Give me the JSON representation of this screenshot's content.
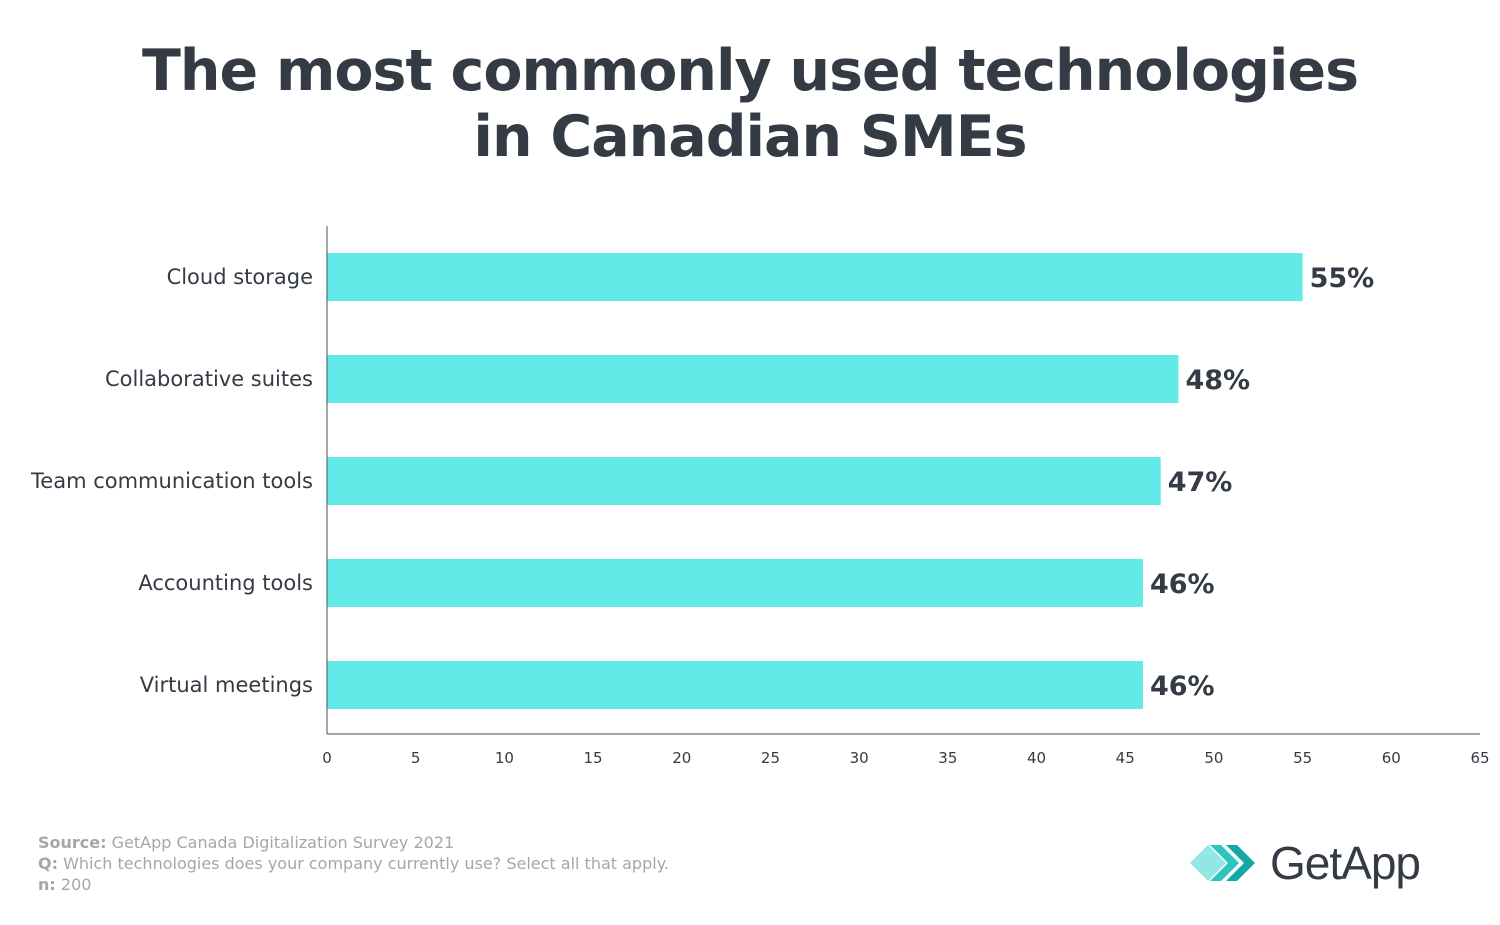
{
  "title": {
    "line1": "The most commonly used technologies",
    "line2": "in Canadian SMEs"
  },
  "chart_data": {
    "type": "bar",
    "orientation": "horizontal",
    "categories": [
      "Cloud storage",
      "Collaborative suites",
      "Team communication tools",
      "Accounting tools",
      "Virtual meetings"
    ],
    "values": [
      55,
      48,
      47,
      46,
      46
    ],
    "value_labels": [
      "55%",
      "48%",
      "47%",
      "46%",
      "46%"
    ],
    "xlim": [
      0,
      65
    ],
    "xticks": [
      0,
      5,
      10,
      15,
      20,
      25,
      30,
      35,
      40,
      45,
      50,
      55,
      60,
      65
    ],
    "grid": false,
    "bar_color": "#64e9e9"
  },
  "footer": {
    "source_key": "Source:",
    "source_value": " GetApp Canada Digitalization Survey 2021",
    "q_key": "Q:",
    "q_value": " Which technologies does your company currently use? Select all that apply.",
    "n_key": "n:",
    "n_value": " 200"
  },
  "logo": {
    "text": "GetApp",
    "icon": "getapp-chevrons-icon",
    "colors": [
      "#7fe3e0",
      "#2fc4c0",
      "#14a7a3"
    ]
  }
}
